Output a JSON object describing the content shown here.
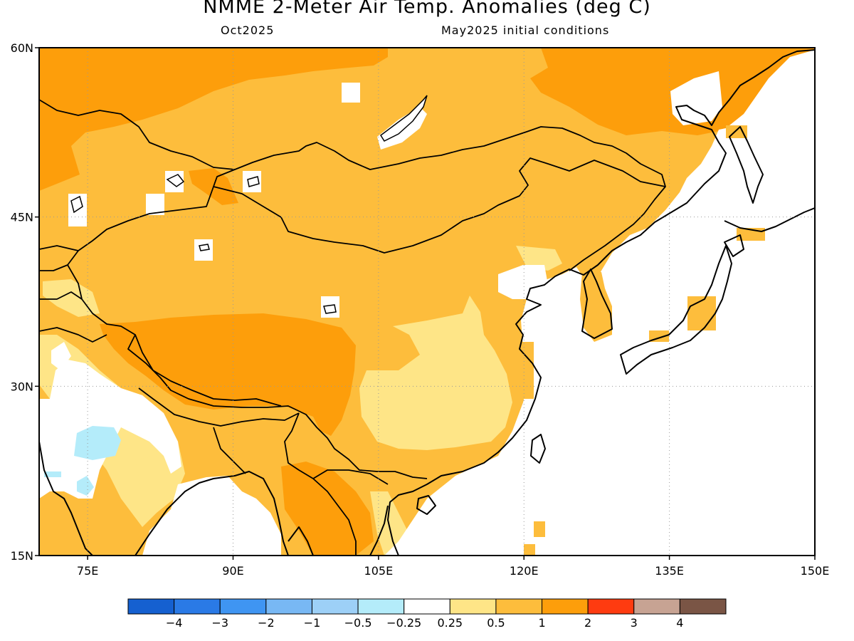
{
  "title": "NMME 2-Meter Air Temp. Anomalies (deg C)",
  "subtitle_left": "Oct2025",
  "subtitle_right": "May2025 initial conditions",
  "map": {
    "lat_range": [
      15,
      60
    ],
    "lon_range": [
      70,
      150
    ],
    "lat_ticks": [
      "60N",
      "45N",
      "30N",
      "15N"
    ],
    "lon_ticks": [
      "75E",
      "90E",
      "105E",
      "120E",
      "135E",
      "150E"
    ],
    "grid": "dotted"
  },
  "legend": {
    "colors": [
      "#1560d0",
      "#2a7ae6",
      "#3f95f2",
      "#78b8f4",
      "#9dd0f7",
      "#b4ecfa",
      "#ffffff",
      "#fee587",
      "#fdbd3c",
      "#fd9e0b",
      "#fe3b10",
      "#c7a393",
      "#7a5545"
    ],
    "labels": [
      "−4",
      "−3",
      "−2",
      "−1",
      "−0.5",
      "−0.25",
      "0.25",
      "0.5",
      "1",
      "2",
      "3",
      "4"
    ]
  },
  "anomaly_colors": {
    "strong": "#fd9e0b",
    "moderate": "#fdbd3c",
    "weak": "#fee587",
    "cool": "#b4ecfa"
  }
}
